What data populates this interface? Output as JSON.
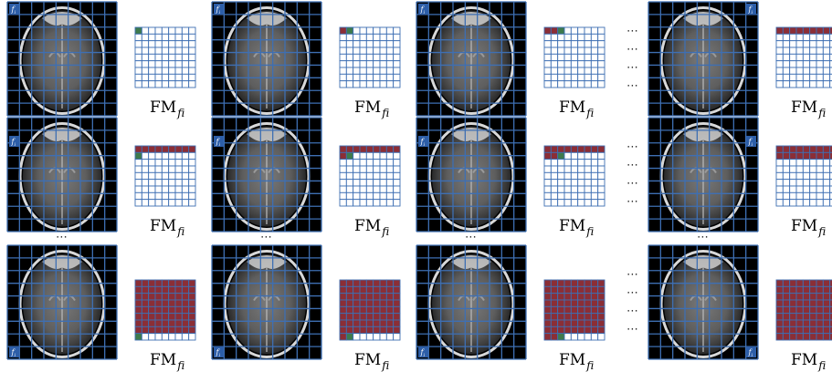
{
  "feature_label": "f",
  "feature_label_sub": "i",
  "fm_label": "FM",
  "fm_sub": "f",
  "fm_sub_sub": "i",
  "ellipsis": "⋯",
  "colors": {
    "grid": "#3e6fb3",
    "brain_bg": "#000000",
    "filled": "#8b2e36",
    "current": "#3e7a4c",
    "empty": "#ffffff",
    "tag": "#2d5ea8"
  },
  "rows": [
    {
      "tag_position": "top-left",
      "panels": [
        {
          "filled_cells": 0,
          "current_cell": 0,
          "tag": "top-left"
        },
        {
          "filled_cells": 1,
          "current_cell": 1,
          "tag": "top-left"
        },
        {
          "filled_cells": 2,
          "current_cell": 2,
          "tag": "top-left"
        },
        {
          "filled_cells": 9,
          "current_cell": -1,
          "tag": "top-right"
        }
      ]
    },
    {
      "tag_position": "middle-left",
      "panels": [
        {
          "filled_cells": 9,
          "current_cell": 9,
          "tag": "middle-left"
        },
        {
          "filled_cells": 10,
          "current_cell": 10,
          "tag": "middle-left"
        },
        {
          "filled_cells": 11,
          "current_cell": 11,
          "tag": "middle-left"
        },
        {
          "filled_cells": 18,
          "current_cell": -1,
          "tag": "middle-right"
        }
      ]
    },
    {
      "tag_position": "bottom-left",
      "panels": [
        {
          "filled_cells": 72,
          "current_cell": 72,
          "tag": "bottom-left"
        },
        {
          "filled_cells": 73,
          "current_cell": 73,
          "tag": "bottom-left"
        },
        {
          "filled_cells": 74,
          "current_cell": 74,
          "tag": "bottom-left"
        },
        {
          "filled_cells": 81,
          "current_cell": -1,
          "tag": "bottom-right"
        }
      ]
    }
  ]
}
